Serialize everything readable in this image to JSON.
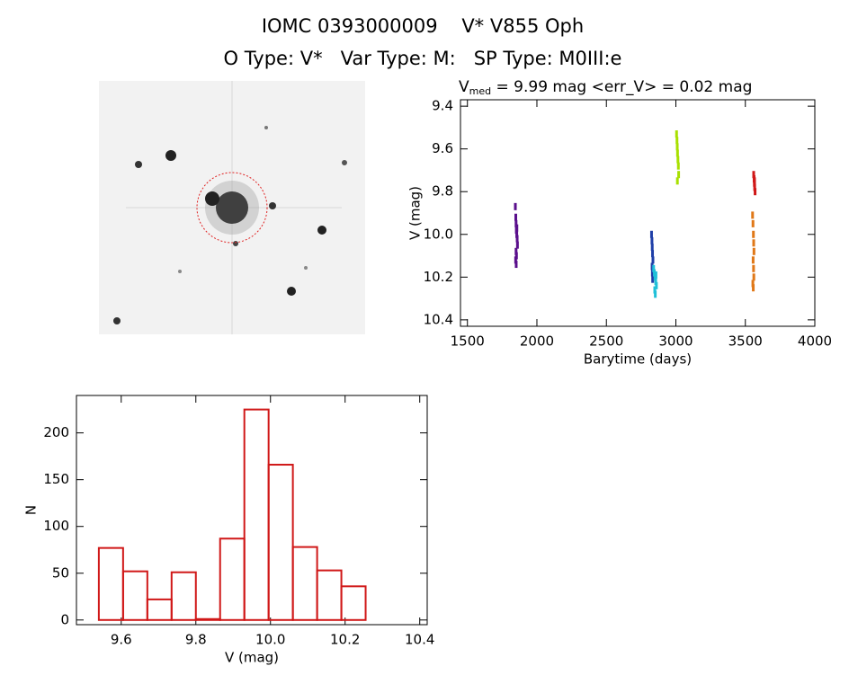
{
  "title": "IOMC 0393000009    V* V855 Oph",
  "subtitle": "O Type: V*   Var Type: M:   SP Type: M0III:e",
  "chart_data": [
    {
      "type": "scatter",
      "title": {
        "main": "V",
        "sub": "med",
        "rest": " = 9.99 mag  <err_V> = 0.02 mag"
      },
      "x_label": "Barytime (days)",
      "y_label": "V (mag)",
      "xlim": [
        1450,
        4000
      ],
      "ylim": [
        10.43,
        9.37
      ],
      "xticks": [
        1500,
        2000,
        2500,
        3000,
        3500,
        4000
      ],
      "yticks": [
        9.4,
        9.6,
        9.8,
        {
          "value": 10,
          "label": "10.0"
        },
        10.2,
        10.4
      ],
      "series": [
        {
          "color": "#5a0f8c",
          "x": [
            1845,
            1848,
            1850,
            1852,
            1855,
            1858,
            1860,
            1850,
            1853,
            1847,
            1856,
            1851
          ],
          "values": [
            9.87,
            9.92,
            9.95,
            9.98,
            10.0,
            10.02,
            10.05,
            10.08,
            10.1,
            10.12,
            9.97,
            10.14
          ]
        },
        {
          "color": "#1f3fa8",
          "x": [
            2825,
            2828,
            2830,
            2832,
            2835,
            2829,
            2831,
            2833
          ],
          "values": [
            10.0,
            10.03,
            10.06,
            10.09,
            10.12,
            10.15,
            10.18,
            10.21
          ]
        },
        {
          "color": "#20c0d8",
          "x": [
            2840,
            2845,
            2850,
            2855,
            2860,
            2848,
            2852,
            2857
          ],
          "values": [
            10.16,
            10.18,
            10.2,
            10.22,
            10.24,
            10.26,
            10.28,
            10.19
          ]
        },
        {
          "color": "#a8e000",
          "x": [
            3005,
            3008,
            3010,
            3012,
            3015,
            3018,
            3020,
            3011
          ],
          "values": [
            9.53,
            9.56,
            9.59,
            9.62,
            9.65,
            9.68,
            9.72,
            9.75
          ]
        },
        {
          "color": "#d01818",
          "x": [
            3560,
            3563,
            3565,
            3567,
            3570,
            3566
          ],
          "values": [
            9.72,
            9.74,
            9.76,
            9.78,
            9.8,
            9.75
          ]
        },
        {
          "color": "#e07818",
          "x": [
            3552,
            3555,
            3558,
            3560,
            3562,
            3556,
            3559,
            3561,
            3554,
            3557
          ],
          "values": [
            9.91,
            9.95,
            10.0,
            10.04,
            10.08,
            10.12,
            10.16,
            10.2,
            10.23,
            10.25
          ]
        }
      ]
    },
    {
      "type": "histogram",
      "x_label": "V (mag)",
      "y_label": "N",
      "color": "#d01818",
      "bins": [
        9.54,
        9.605,
        9.67,
        9.735,
        9.8,
        9.865,
        9.93,
        9.995,
        10.06,
        10.125,
        10.19,
        10.255
      ],
      "values": [
        77,
        52,
        22,
        51,
        1,
        87,
        225,
        166,
        78,
        53,
        36
      ],
      "xlim": [
        9.48,
        10.42
      ],
      "ylim": [
        -5,
        240
      ],
      "xticks": [
        9.6,
        9.8,
        {
          "value": 10,
          "label": "10.0"
        },
        10.2,
        10.4
      ],
      "yticks": [
        0,
        50,
        100,
        150,
        200
      ]
    }
  ]
}
